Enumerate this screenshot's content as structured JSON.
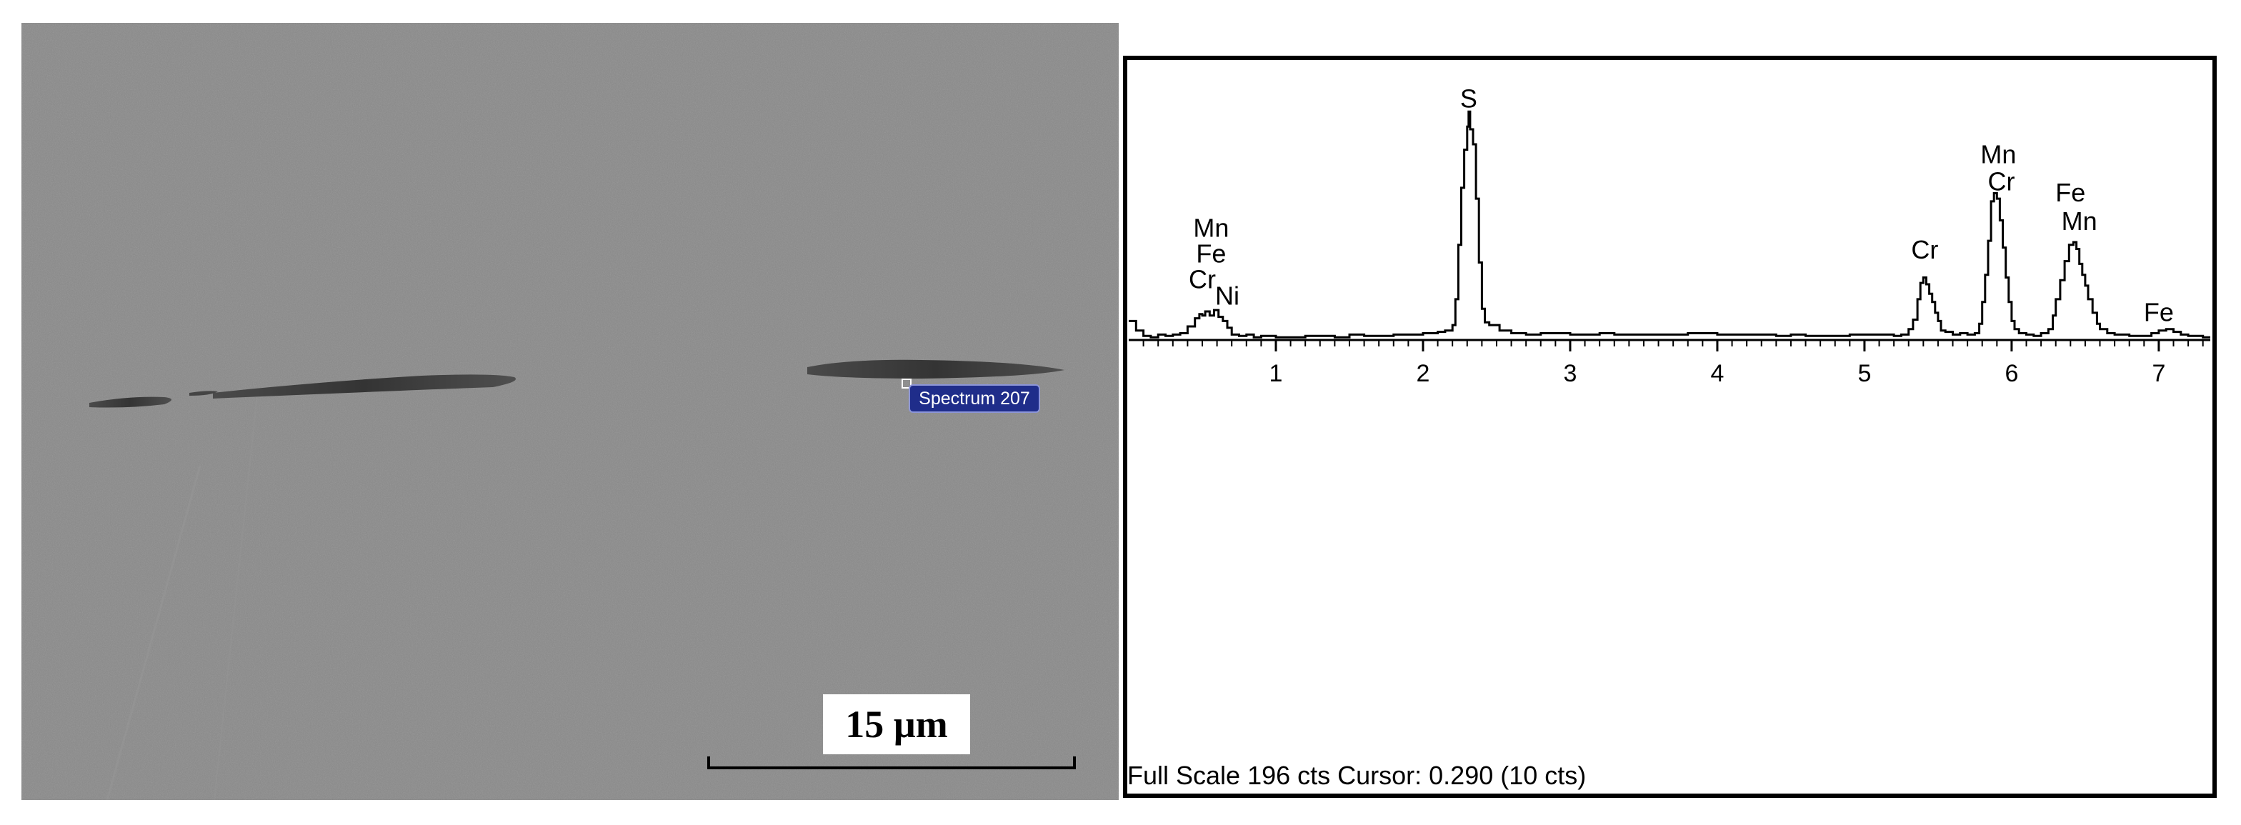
{
  "micrograph": {
    "spectrum_label": "Spectrum 207",
    "scale_bar_label": "15 µm",
    "background_color": "#8b8b8b",
    "inclusion_color": "#3b3b3b"
  },
  "chart_data": {
    "type": "line",
    "title": "",
    "xlabel": "",
    "ylabel": "",
    "xlim": [
      0,
      7.35
    ],
    "ylim": [
      0,
      196
    ],
    "x_ticks": [
      "1",
      "2",
      "3",
      "4",
      "5",
      "6",
      "7"
    ],
    "footer": "Full Scale 196 cts Cursor: 0.290  (10 cts)",
    "peak_labels": [
      {
        "text": "Mn",
        "x": 0.56,
        "y": 76
      },
      {
        "text": "Fe",
        "x": 0.56,
        "y": 57
      },
      {
        "text": "Cr",
        "x": 0.5,
        "y": 38
      },
      {
        "text": "Ni",
        "x": 0.67,
        "y": 26
      },
      {
        "text": "S",
        "x": 2.31,
        "y": 171
      },
      {
        "text": "Mn",
        "x": 5.91,
        "y": 130
      },
      {
        "text": "Cr",
        "x": 5.93,
        "y": 110
      },
      {
        "text": "Fe",
        "x": 6.4,
        "y": 102
      },
      {
        "text": "Mn",
        "x": 6.46,
        "y": 81
      },
      {
        "text": "Cr",
        "x": 5.41,
        "y": 60
      },
      {
        "text": "Fe",
        "x": 7.0,
        "y": 14
      }
    ],
    "series": [
      {
        "values": [
          [
            0.0,
            14
          ],
          [
            0.05,
            7
          ],
          [
            0.1,
            3
          ],
          [
            0.15,
            2
          ],
          [
            0.2,
            4
          ],
          [
            0.25,
            3
          ],
          [
            0.3,
            4
          ],
          [
            0.35,
            5
          ],
          [
            0.4,
            10
          ],
          [
            0.45,
            16
          ],
          [
            0.48,
            19
          ],
          [
            0.5,
            18
          ],
          [
            0.52,
            21
          ],
          [
            0.55,
            18
          ],
          [
            0.58,
            22
          ],
          [
            0.61,
            17
          ],
          [
            0.64,
            14
          ],
          [
            0.67,
            9
          ],
          [
            0.7,
            4
          ],
          [
            0.75,
            3
          ],
          [
            0.8,
            4
          ],
          [
            0.85,
            2
          ],
          [
            0.9,
            3
          ],
          [
            1.0,
            2
          ],
          [
            1.1,
            2
          ],
          [
            1.2,
            3
          ],
          [
            1.3,
            3
          ],
          [
            1.4,
            2
          ],
          [
            1.5,
            4
          ],
          [
            1.6,
            3
          ],
          [
            1.7,
            3
          ],
          [
            1.8,
            4
          ],
          [
            1.9,
            4
          ],
          [
            2.0,
            5
          ],
          [
            2.1,
            6
          ],
          [
            2.15,
            7
          ],
          [
            2.2,
            11
          ],
          [
            2.22,
            30
          ],
          [
            2.24,
            70
          ],
          [
            2.26,
            112
          ],
          [
            2.28,
            140
          ],
          [
            2.3,
            157
          ],
          [
            2.31,
            168
          ],
          [
            2.32,
            155
          ],
          [
            2.34,
            144
          ],
          [
            2.36,
            104
          ],
          [
            2.38,
            57
          ],
          [
            2.4,
            23
          ],
          [
            2.42,
            13
          ],
          [
            2.45,
            11
          ],
          [
            2.48,
            11
          ],
          [
            2.52,
            7
          ],
          [
            2.6,
            5
          ],
          [
            2.7,
            4
          ],
          [
            2.8,
            5
          ],
          [
            2.9,
            5
          ],
          [
            3.0,
            4
          ],
          [
            3.1,
            4
          ],
          [
            3.2,
            5
          ],
          [
            3.3,
            4
          ],
          [
            3.4,
            4
          ],
          [
            3.5,
            4
          ],
          [
            3.6,
            4
          ],
          [
            3.7,
            4
          ],
          [
            3.8,
            5
          ],
          [
            3.9,
            5
          ],
          [
            4.0,
            4
          ],
          [
            4.1,
            4
          ],
          [
            4.2,
            4
          ],
          [
            4.3,
            4
          ],
          [
            4.4,
            3
          ],
          [
            4.5,
            4
          ],
          [
            4.6,
            3
          ],
          [
            4.7,
            3
          ],
          [
            4.8,
            3
          ],
          [
            4.9,
            4
          ],
          [
            5.0,
            4
          ],
          [
            5.1,
            4
          ],
          [
            5.2,
            3
          ],
          [
            5.25,
            4
          ],
          [
            5.3,
            8
          ],
          [
            5.33,
            15
          ],
          [
            5.36,
            30
          ],
          [
            5.38,
            42
          ],
          [
            5.4,
            46
          ],
          [
            5.42,
            41
          ],
          [
            5.44,
            34
          ],
          [
            5.46,
            28
          ],
          [
            5.48,
            20
          ],
          [
            5.5,
            14
          ],
          [
            5.52,
            7
          ],
          [
            5.55,
            6
          ],
          [
            5.6,
            4
          ],
          [
            5.65,
            5
          ],
          [
            5.7,
            4
          ],
          [
            5.75,
            5
          ],
          [
            5.78,
            12
          ],
          [
            5.8,
            28
          ],
          [
            5.82,
            48
          ],
          [
            5.84,
            73
          ],
          [
            5.86,
            102
          ],
          [
            5.88,
            108
          ],
          [
            5.9,
            104
          ],
          [
            5.92,
            88
          ],
          [
            5.94,
            68
          ],
          [
            5.96,
            46
          ],
          [
            5.98,
            28
          ],
          [
            6.0,
            14
          ],
          [
            6.02,
            8
          ],
          [
            6.05,
            5
          ],
          [
            6.1,
            4
          ],
          [
            6.15,
            3
          ],
          [
            6.2,
            5
          ],
          [
            6.25,
            8
          ],
          [
            6.28,
            18
          ],
          [
            6.3,
            30
          ],
          [
            6.33,
            44
          ],
          [
            6.36,
            58
          ],
          [
            6.39,
            70
          ],
          [
            6.42,
            72
          ],
          [
            6.44,
            67
          ],
          [
            6.46,
            56
          ],
          [
            6.48,
            48
          ],
          [
            6.5,
            40
          ],
          [
            6.52,
            30
          ],
          [
            6.55,
            20
          ],
          [
            6.58,
            12
          ],
          [
            6.6,
            8
          ],
          [
            6.65,
            5
          ],
          [
            6.7,
            4
          ],
          [
            6.8,
            3
          ],
          [
            6.9,
            3
          ],
          [
            6.95,
            5
          ],
          [
            7.0,
            7
          ],
          [
            7.05,
            8
          ],
          [
            7.1,
            6
          ],
          [
            7.15,
            4
          ],
          [
            7.2,
            3
          ],
          [
            7.25,
            3
          ],
          [
            7.3,
            2
          ],
          [
            7.35,
            2
          ]
        ]
      }
    ]
  }
}
